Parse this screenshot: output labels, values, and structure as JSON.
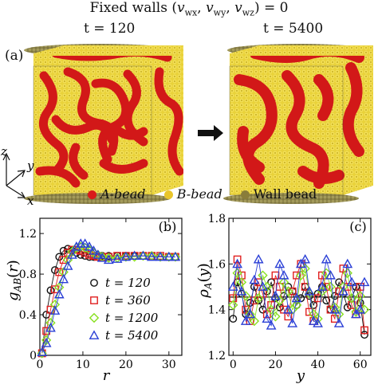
{
  "header": {
    "title": "Fixed walls (v_wx, v_wy, v_wz) = 0",
    "title_main": "Fixed walls",
    "title_vars": [
      "wx",
      "wy",
      "wz"
    ],
    "title_tail": "= 0",
    "time_left": "t = 120",
    "time_right": "t = 5400"
  },
  "panel_a": {
    "label": "(a)",
    "axes": {
      "z": "z",
      "y": "y",
      "x": "x"
    },
    "legend": [
      {
        "text": "A-bead",
        "color": "#d91a1a"
      },
      {
        "text": "B-bead",
        "color": "#e9d23a"
      },
      {
        "text": "Wall bead",
        "color": "#8a7d3a"
      }
    ]
  },
  "panel_b": {
    "label": "(b)"
  },
  "panel_c": {
    "label": "(c)"
  },
  "colors": {
    "a_bead": "#d91a1a",
    "b_bead": "#e9d23a",
    "wall": "#8f8446",
    "series_120": "#111111",
    "series_360": "#e02020",
    "series_1200": "#88e020",
    "series_5400": "#2a3fd6"
  },
  "chart_data": [
    {
      "type": "scatter",
      "panel": "(b)",
      "xlabel": "r",
      "ylabel": "g_AB(r)",
      "xlim": [
        0,
        33
      ],
      "ylim": [
        0,
        1.35
      ],
      "xticks": [
        0,
        10,
        20,
        30
      ],
      "yticks": [
        0,
        0.4,
        0.8,
        1.2
      ],
      "xticklabels": [
        "0",
        "10",
        "20",
        "30"
      ],
      "yticklabels": [
        "0",
        "0.4",
        "0.8",
        "1.2"
      ],
      "legend_position": "lower-right",
      "series": [
        {
          "name": "t = 120",
          "marker": "circle",
          "color": "#111111",
          "x": [
            0.5,
            1.5,
            2.5,
            3.5,
            4.5,
            5.5,
            6.5,
            7.5,
            8.5,
            9.5,
            10.5,
            11.5,
            12.5,
            13.5,
            14.5,
            16,
            18,
            20,
            22,
            24,
            26,
            28,
            30,
            31.5
          ],
          "y": [
            0.02,
            0.4,
            0.64,
            0.84,
            0.97,
            1.03,
            1.05,
            1.03,
            1.01,
            0.99,
            0.98,
            0.97,
            0.97,
            0.97,
            0.98,
            0.98,
            0.98,
            0.98,
            0.98,
            0.98,
            0.98,
            0.97,
            0.97,
            0.97
          ]
        },
        {
          "name": "t = 360",
          "marker": "square",
          "color": "#e02020",
          "x": [
            0.5,
            1.5,
            2.5,
            3.5,
            4.5,
            5.5,
            6.5,
            7.5,
            8.5,
            9.5,
            10.5,
            11.5,
            12.5,
            13.5,
            14.5,
            16,
            18,
            20,
            22,
            24,
            26,
            28,
            30,
            31.5
          ],
          "y": [
            0.02,
            0.24,
            0.45,
            0.65,
            0.82,
            0.94,
            1.01,
            1.04,
            1.04,
            1.03,
            1.01,
            0.99,
            0.98,
            0.97,
            0.97,
            0.97,
            0.98,
            0.98,
            0.98,
            0.98,
            0.98,
            0.98,
            0.97,
            0.97
          ]
        },
        {
          "name": "t = 1200",
          "marker": "diamond",
          "color": "#88e020",
          "x": [
            0.5,
            1.5,
            2.5,
            3.5,
            4.5,
            5.5,
            6.5,
            7.5,
            8.5,
            9.5,
            10.5,
            11.5,
            12.5,
            13.5,
            14.5,
            16,
            18,
            20,
            22,
            24,
            26,
            28,
            30,
            31.5
          ],
          "y": [
            0.02,
            0.15,
            0.32,
            0.5,
            0.67,
            0.82,
            0.94,
            1.02,
            1.06,
            1.07,
            1.06,
            1.04,
            1.01,
            0.99,
            0.97,
            0.96,
            0.96,
            0.97,
            0.97,
            0.98,
            0.98,
            0.97,
            0.97,
            0.97
          ]
        },
        {
          "name": "t = 5400",
          "marker": "triangle",
          "color": "#2a3fd6",
          "x": [
            0.5,
            1.5,
            2.5,
            3.5,
            4.5,
            5.5,
            6.5,
            7.5,
            8.5,
            9.5,
            10.5,
            11.5,
            12.5,
            13.5,
            14.5,
            16,
            18,
            20,
            22,
            24,
            26,
            28,
            30,
            31.5
          ],
          "y": [
            0.03,
            0.12,
            0.27,
            0.44,
            0.6,
            0.75,
            0.88,
            0.99,
            1.07,
            1.1,
            1.1,
            1.07,
            1.03,
            0.99,
            0.96,
            0.94,
            0.95,
            0.97,
            0.98,
            0.98,
            0.97,
            0.97,
            0.97,
            0.97
          ]
        }
      ]
    },
    {
      "type": "scatter",
      "panel": "(c)",
      "xlabel": "y",
      "ylabel": "ρ_A(y)",
      "xlim": [
        -2,
        65
      ],
      "ylim": [
        1.2,
        1.8
      ],
      "xticks": [
        0,
        20,
        40,
        60
      ],
      "yticks": [
        1.2,
        1.4,
        1.6,
        1.8
      ],
      "xticklabels": [
        "0",
        "20",
        "40",
        "60"
      ],
      "yticklabels": [
        "1.2",
        "1.4",
        "1.6",
        "1.8"
      ],
      "reference_line_y": 1.455,
      "series": [
        {
          "name": "t = 120",
          "marker": "circle",
          "color": "#111111",
          "x": [
            0,
            2,
            4,
            6,
            8,
            10,
            12,
            14,
            16,
            18,
            20,
            22,
            24,
            26,
            28,
            30,
            32,
            34,
            36,
            38,
            40,
            42,
            44,
            46,
            48,
            50,
            52,
            54,
            56,
            58,
            60,
            62
          ],
          "y": [
            1.36,
            1.52,
            1.47,
            1.38,
            1.43,
            1.5,
            1.44,
            1.4,
            1.48,
            1.52,
            1.45,
            1.41,
            1.46,
            1.5,
            1.48,
            1.42,
            1.45,
            1.5,
            1.46,
            1.42,
            1.47,
            1.5,
            1.44,
            1.4,
            1.46,
            1.52,
            1.47,
            1.41,
            1.45,
            1.5,
            1.43,
            1.29
          ]
        },
        {
          "name": "t = 360",
          "marker": "square",
          "color": "#e02020",
          "x": [
            0,
            2,
            4,
            6,
            8,
            10,
            12,
            14,
            16,
            18,
            20,
            22,
            24,
            26,
            28,
            30,
            32,
            34,
            36,
            38,
            40,
            42,
            44,
            46,
            48,
            50,
            52,
            54,
            56,
            58,
            60,
            62
          ],
          "y": [
            1.45,
            1.62,
            1.55,
            1.4,
            1.35,
            1.44,
            1.52,
            1.47,
            1.38,
            1.42,
            1.55,
            1.5,
            1.4,
            1.37,
            1.48,
            1.55,
            1.6,
            1.5,
            1.39,
            1.35,
            1.45,
            1.55,
            1.5,
            1.4,
            1.36,
            1.48,
            1.58,
            1.5,
            1.42,
            1.38,
            1.5,
            1.31
          ]
        },
        {
          "name": "t = 1200",
          "marker": "diamond",
          "color": "#88e020",
          "x": [
            0,
            2,
            4,
            6,
            8,
            10,
            12,
            14,
            16,
            18,
            20,
            22,
            24,
            26,
            28,
            30,
            32,
            34,
            36,
            38,
            40,
            42,
            44,
            46,
            48,
            50,
            52,
            54,
            56,
            58,
            60,
            62
          ],
          "y": [
            1.42,
            1.56,
            1.52,
            1.46,
            1.38,
            1.35,
            1.45,
            1.55,
            1.5,
            1.4,
            1.37,
            1.44,
            1.52,
            1.48,
            1.4,
            1.42,
            1.55,
            1.58,
            1.47,
            1.38,
            1.36,
            1.48,
            1.56,
            1.5,
            1.41,
            1.38,
            1.5,
            1.56,
            1.45,
            1.39,
            1.46,
            1.4
          ]
        },
        {
          "name": "t = 5400",
          "marker": "triangle",
          "color": "#2a3fd6",
          "x": [
            0,
            2,
            4,
            6,
            8,
            10,
            12,
            14,
            16,
            18,
            20,
            22,
            24,
            26,
            28,
            30,
            32,
            34,
            36,
            38,
            40,
            42,
            44,
            46,
            48,
            50,
            52,
            54,
            56,
            58,
            60,
            62
          ],
          "y": [
            1.5,
            1.6,
            1.48,
            1.35,
            1.38,
            1.53,
            1.62,
            1.5,
            1.36,
            1.33,
            1.46,
            1.6,
            1.55,
            1.4,
            1.34,
            1.45,
            1.6,
            1.62,
            1.48,
            1.35,
            1.34,
            1.5,
            1.62,
            1.55,
            1.4,
            1.34,
            1.48,
            1.6,
            1.52,
            1.38,
            1.4,
            1.52
          ]
        }
      ]
    }
  ]
}
